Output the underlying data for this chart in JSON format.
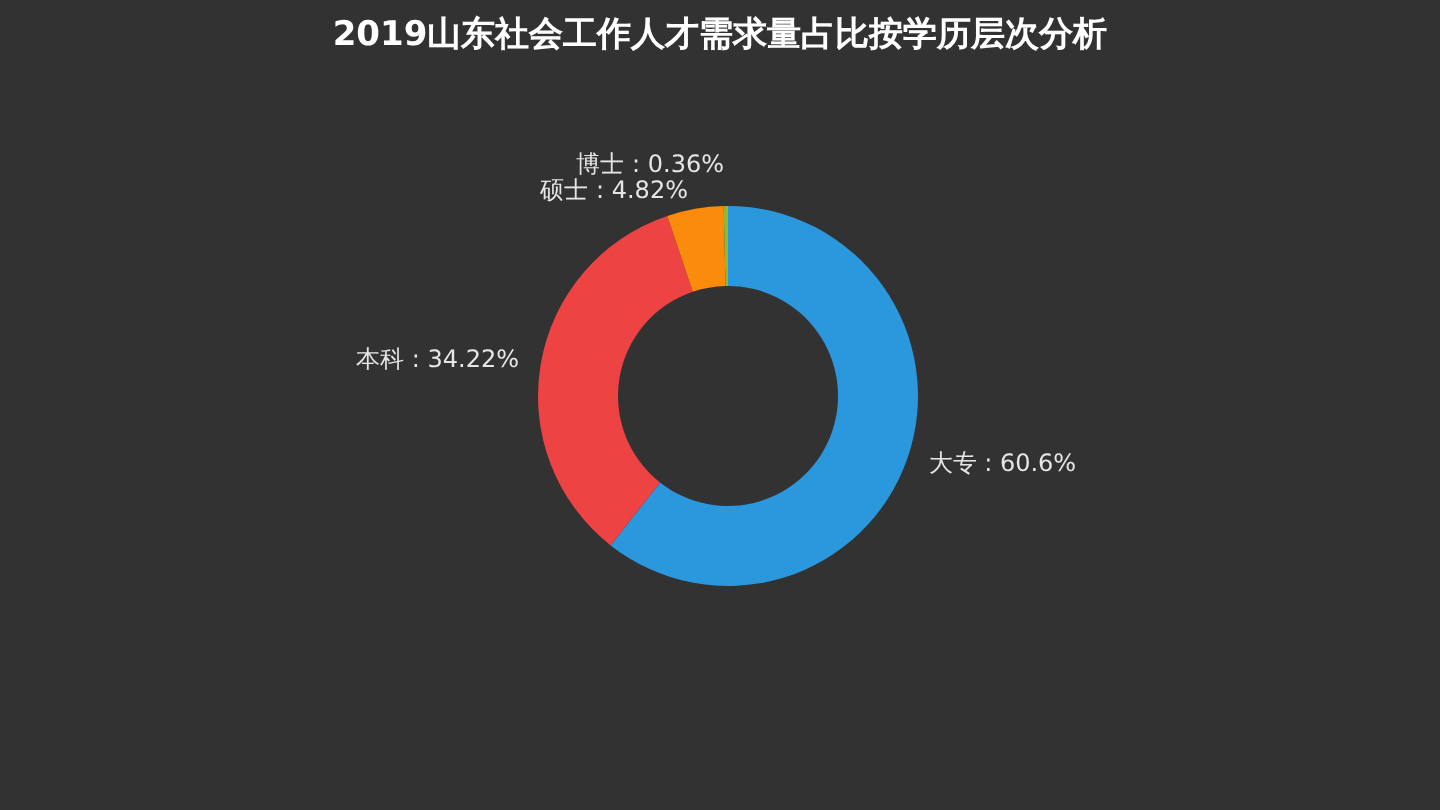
{
  "chart_data": {
    "type": "donut",
    "title": "2019山东社会工作人才需求量占比按学历层次分析",
    "categories": [
      "大专",
      "本科",
      "硕士",
      "博士"
    ],
    "values": [
      60.6,
      34.22,
      4.82,
      0.36
    ],
    "colors": [
      "#2b97dd",
      "#ee4343",
      "#fa8b0c",
      "#96b92c"
    ],
    "value_labels": [
      "60.6%",
      "34.22%",
      "4.82%",
      "0.36%"
    ]
  }
}
